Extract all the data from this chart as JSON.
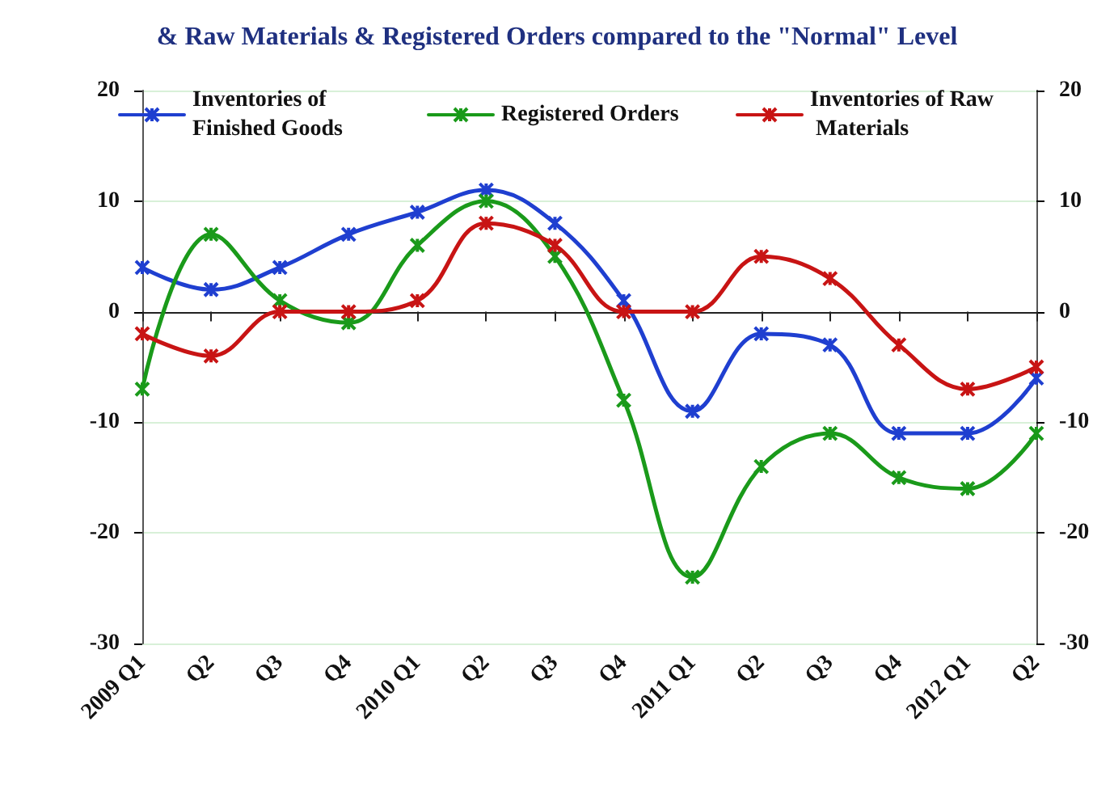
{
  "chart_data": {
    "type": "line",
    "title": "& Raw Materials & Registered Orders compared to the \"Normal\" Level",
    "categories": [
      "2009 Q1",
      "Q2",
      "Q3",
      "Q4",
      "2010 Q1",
      "Q2",
      "Q3",
      "Q4",
      "2011 Q1",
      "Q2",
      "Q3",
      "Q4",
      "2012 Q1",
      "Q2"
    ],
    "series": [
      {
        "name": "Inventories of Finished Goods",
        "color": "#1f3fd0",
        "values": [
          4,
          2,
          4,
          7,
          9,
          11,
          8,
          1,
          -9,
          -2,
          -3,
          -11,
          -11,
          -6
        ]
      },
      {
        "name": "Registered Orders",
        "color": "#1a9a1a",
        "values": [
          -7,
          7,
          1,
          -1,
          6,
          10,
          5,
          -8,
          -24,
          -14,
          -11,
          -15,
          -16,
          -11
        ]
      },
      {
        "name": "Inventories of Raw Materials",
        "color": "#c81414",
        "values": [
          -2,
          -4,
          0,
          0,
          1,
          8,
          6,
          0,
          0,
          5,
          3,
          -3,
          -7,
          -5
        ]
      }
    ],
    "ylim": [
      -30,
      20
    ],
    "yticks": [
      -30,
      -20,
      -10,
      0,
      10,
      20
    ],
    "y2lim": [
      -30,
      20
    ],
    "y2ticks": [
      -30,
      -20,
      -10,
      0,
      10,
      20
    ],
    "grid": "y",
    "legend": "top",
    "marker": "cross",
    "line_style": "solid"
  }
}
